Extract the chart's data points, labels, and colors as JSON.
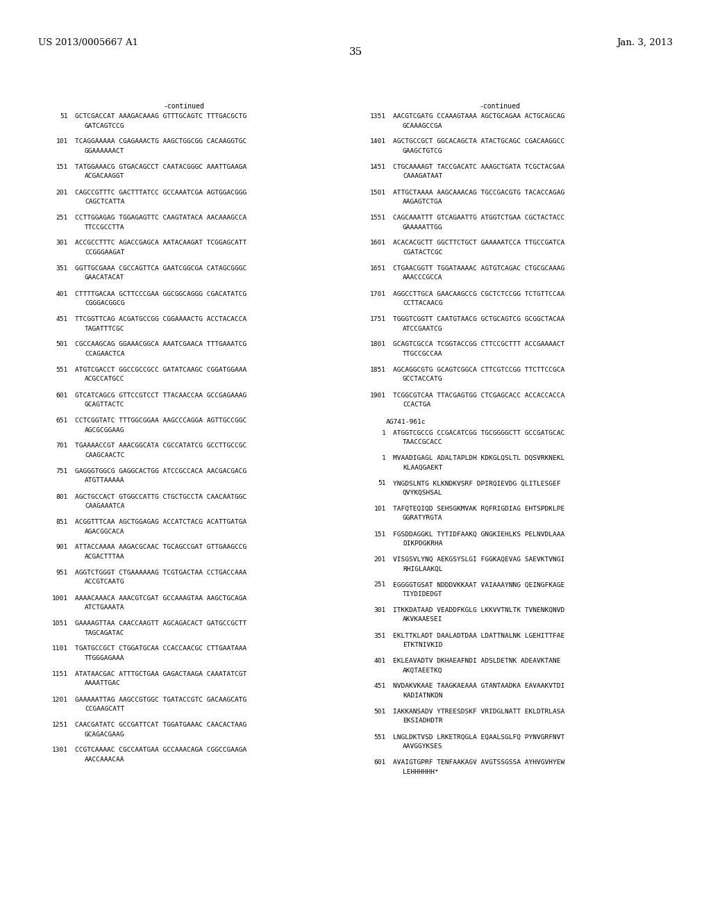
{
  "header_left": "US 2013/0005667 A1",
  "header_right": "Jan. 3, 2013",
  "page_number": "35",
  "background_color": "#ffffff",
  "text_color": "#000000",
  "font_size": 6.8,
  "header_font_size": 9.5,
  "page_num_font_size": 11,
  "left_continued": "-continued",
  "right_continued": "-continued",
  "left_sequences": [
    {
      "num": "51",
      "line1": "GCTCGACCAT AAAGACAAAG GTTTGCAGTC TTTGACGCTG",
      "line2": "GATCAGTCCG"
    },
    {
      "num": "101",
      "line1": "TCAGGAAAAA CGAGAAACTG AAGCTGGCGG CACAAGGTGC",
      "line2": "GGAAAAAACT"
    },
    {
      "num": "151",
      "line1": "TATGGAAACG GTGACAGCCT CAATACGGGC AAATTGAAGA",
      "line2": "ACGACAAGGT"
    },
    {
      "num": "201",
      "line1": "CAGCCGTTTC GACTTTATCC GCCAAATCGA AGTGGACGGG",
      "line2": "CAGCTCATTA"
    },
    {
      "num": "251",
      "line1": "CCTTGGAGAG TGGAGAGTTC CAAGTATACA AACAAAGCCA",
      "line2": "TTCCGCCTTA"
    },
    {
      "num": "301",
      "line1": "ACCGCCTTTC AGACCGAGCA AATACAAGAT TCGGAGCATT",
      "line2": "CCGGGAAGAT"
    },
    {
      "num": "351",
      "line1": "GGTTGCGAAA CGCCAGTTCA GAATCGGCGA CATAGCGGGC",
      "line2": "GAACATACAT"
    },
    {
      "num": "401",
      "line1": "CTTTTGACAA GCTTCCCGAA GGCGGCAGGG CGACATATCG",
      "line2": "CGGGACGGCG"
    },
    {
      "num": "451",
      "line1": "TTCGGTTCAG ACGATGCCGG CGGAAAACTG ACCTACACCA",
      "line2": "TAGATTTCGC"
    },
    {
      "num": "501",
      "line1": "CGCCAAGCAG GGAAACGGCA AAATCGAACA TTTGAAATCG",
      "line2": "CCAGAACTCA"
    },
    {
      "num": "551",
      "line1": "ATGTCGACCT GGCCGCCGCC GATATCAAGC CGGATGGAAA",
      "line2": "ACGCCATGCC"
    },
    {
      "num": "601",
      "line1": "GTCATCAGCG GTTCCGTCCT TTACAACCAA GCCGAGAAAG",
      "line2": "GCAGTTACTC"
    },
    {
      "num": "651",
      "line1": "CCTCGGTATC TTTGGCGGAA AAGCCCAGGA AGTTGCCGGC",
      "line2": "AGCGCGGAAG"
    },
    {
      "num": "701",
      "line1": "TGAAAACCGT AAACGGCATA CGCCATATCG GCCTTGCCGC",
      "line2": "CAAGCAACTC"
    },
    {
      "num": "751",
      "line1": "GAGGGTGGCG GAGGCACTGG ATCCGCCACA AACGACGACG",
      "line2": "ATGTTAAAAA"
    },
    {
      "num": "801",
      "line1": "AGCTGCCACT GTGGCCATTG CTGCTGCCTA CAACAATGGC",
      "line2": "CAAGAAATCA"
    },
    {
      "num": "851",
      "line1": "ACGGTTTCAA AGCTGGAGAG ACCATCTACG ACATTGATGA",
      "line2": "AGACGGCACA"
    },
    {
      "num": "901",
      "line1": "ATTACCAAAA AAGACGCAAC TGCAGCCGAT GTTGAAGCCG",
      "line2": "ACGACTTTAA"
    },
    {
      "num": "951",
      "line1": "AGGTCTGGGT CTGAAAAAAG TCGTGACTAA CCTGACCAAA",
      "line2": "ACCGTCAATG"
    },
    {
      "num": "1001",
      "line1": "AAAACAAACA AAACGTCGAT GCCAAAGTAA AAGCTGCAGA",
      "line2": "ATCTGAAATA"
    },
    {
      "num": "1051",
      "line1": "GAAAAGTTAA CAACCAAGTT AGCAGACACT GATGCCGCTT",
      "line2": "TAGCAGATAC"
    },
    {
      "num": "1101",
      "line1": "TGATGCCGCT CTGGATGCAA CCACCAACGC CTTGAATAAA",
      "line2": "TTGGGAGAAA"
    },
    {
      "num": "1151",
      "line1": "ATATAACGAC ATTTGCTGAA GAGACTAAGA CAAATATCGT",
      "line2": "AAAATTGAC"
    },
    {
      "num": "1201",
      "line1": "GAAAAATTAG AAGCCGTGGC TGATACCGTC GACAAGCATG",
      "line2": "CCGAAGCATT"
    },
    {
      "num": "1251",
      "line1": "CAACGATATC GCCGATTCAT TGGATGAAAC CAACACTAAG",
      "line2": "GCAGACGAAG"
    },
    {
      "num": "1301",
      "line1": "CCGTCAAAAC CGCCAATGAA GCCAAACAGA CGGCCGAAGA",
      "line2": "AACCAAACAA"
    }
  ],
  "right_dna_sequences": [
    {
      "num": "1351",
      "line1": "AACGTCGATG CCAAAGTAAA AGCTGCAGAA ACTGCAGCAG",
      "line2": "GCAAAGCCGA"
    },
    {
      "num": "1401",
      "line1": "AGCTGCCGCT GGCACAGCTA ATACTGCAGC CGACAAGGCC",
      "line2": "GAAGCTGTCG"
    },
    {
      "num": "1451",
      "line1": "CTGCAAAAGT TACCGACATC AAAGCTGATA TCGCTACGAA",
      "line2": "CAAAGATAAT"
    },
    {
      "num": "1501",
      "line1": "ATTGCTAAAA AAGCAAACAG TGCCGACGTG TACACCAGAG",
      "line2": "AAGAGTCTGA"
    },
    {
      "num": "1551",
      "line1": "CAGCAAATTT GTCAGAATTG ATGGTCTGAA CGCTACTACC",
      "line2": "GAAAAATTGG"
    },
    {
      "num": "1601",
      "line1": "ACACACGCTT GGCTTCTGCT GAAAAATCCA TTGCCGATCA",
      "line2": "CGATACTCGC"
    },
    {
      "num": "1651",
      "line1": "CTGAACGGTT TGGATAAAAC AGTGTCAGAC CTGCGCAAAG",
      "line2": "AAACCCGCCA"
    },
    {
      "num": "1701",
      "line1": "AGGCCTTGCA GAACAAGCCG CGCTCTCCGG TCTGTTCCAA",
      "line2": "CCTTACAACG"
    },
    {
      "num": "1751",
      "line1": "TGGGTCGGTT CAATGTAACG GCTGCAGTCG GCGGCTACAA",
      "line2": "ATCCGAATCG"
    },
    {
      "num": "1801",
      "line1": "GCAGTCGCCA TCGGTACCGG CTTCCGCTTT ACCGAAAACT",
      "line2": "TTGCCGCCAA"
    },
    {
      "num": "1851",
      "line1": "AGCAGGCGTG GCAGTCGGCA CTTCGTCCGG TTCTTCCGCA",
      "line2": "GCCTACCATG"
    },
    {
      "num": "1901",
      "line1": "TCGGCGTCAA TTACGAGTGG CTCGAGCACC ACCACCACCA",
      "line2": "CCACTGA"
    }
  ],
  "ag_label": "AG741-961c",
  "ag_dna_num": "1",
  "ag_dna_line1": "ATGGTCGCCG CCGACATCGG TGCGGGGCTT GCCGATGCAC",
  "ag_dna_line2": "TAACCGCACC",
  "right_protein_sequences": [
    {
      "num": "1",
      "line1": "MVAADIGAGL ADALTAPLDH KDKGLQSLTL DQSVRKNEKL",
      "line2": "KLAAQGAEKT"
    },
    {
      "num": "51",
      "line1": "YNGDSLNTG KLKNDKVSRF DPIRQIEVDG QLITLESGEF",
      "line2": "QVYKQSHSAL"
    },
    {
      "num": "101",
      "line1": "TAFQTEQIQD SEHSGKMVAK RQFRIGDIAG EHTSPDKLPE",
      "line2": "GGRATYRGTA"
    },
    {
      "num": "151",
      "line1": "FGSDDAGGKL TYTIDFAAKQ GNGKIEHLKS PELNVDLAAA",
      "line2": "DIKPDGKRHA"
    },
    {
      "num": "201",
      "line1": "VISGSVLYNQ AEKGSYSLGI FGGKAQEVAG SAEVKTVNGI",
      "line2": "RHIGLAAKQL"
    },
    {
      "num": "251",
      "line1": "EGGGGTGSAT NDDDVKKAAT VAIAAAYNNG QEINGFKAGE",
      "line2": "TIYDIDEDGT"
    },
    {
      "num": "301",
      "line1": "ITKKDATAAD VEADDFKGLG LKKVVTNLTK TVNENKQNVD",
      "line2": "AKVKAAESEI"
    },
    {
      "num": "351",
      "line1": "EKLTTKLADT DAALADTDAA LDATTNALNK LGEHITTFAE",
      "line2": "ETKTNIVKID"
    },
    {
      "num": "401",
      "line1": "EKLEAVADTV DKHAEAFNDI ADSLDETNK ADEAVKTANE",
      "line2": "AKQTAEETKQ"
    },
    {
      "num": "451",
      "line1": "NVDAKVKAAE TAAGKAEAAA GTANTAADKA EAVAAKVTDI",
      "line2": "KADIATNKDN"
    },
    {
      "num": "501",
      "line1": "IAKKANSADV YTREESDSKF VRIDGLNATT EKLDTRLASA",
      "line2": "EKSIADHDTR"
    },
    {
      "num": "551",
      "line1": "LNGLDKTVSD LRKETRQGLA EQAALSGLFQ PYNVGRFNVT",
      "line2": "AAVGGYKSES"
    },
    {
      "num": "601",
      "line1": "AVAIGTGPRF TENFAAKAGV AVGTSSGSSA AYHVGVHYEW",
      "line2": "LEHHHHHH*"
    }
  ]
}
